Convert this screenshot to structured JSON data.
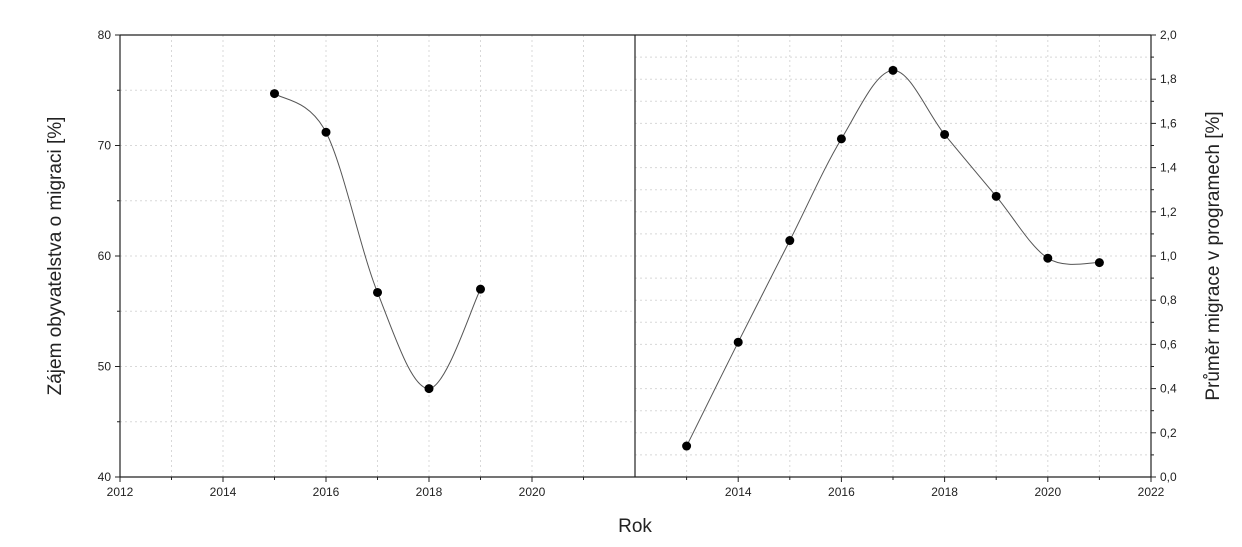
{
  "chart_data": [
    {
      "type": "scatter",
      "panel": "left",
      "xlabel": "Rok",
      "ylabel": "Zájem obyvatelstva o migraci [%]",
      "xlim": [
        2012,
        2022
      ],
      "ylim": [
        40,
        80
      ],
      "x_ticks": [
        "2012",
        "2014",
        "2016",
        "2018",
        "2020"
      ],
      "y_ticks": [
        "40",
        "50",
        "60",
        "70",
        "80"
      ],
      "grid": true,
      "smooth_line": true,
      "x": [
        2015,
        2016,
        2017,
        2018,
        2019
      ],
      "y": [
        74.7,
        71.2,
        56.7,
        48.0,
        57.0
      ]
    },
    {
      "type": "scatter",
      "panel": "right",
      "xlabel": "Rok",
      "ylabel": "Průměr migrace v programech [%]",
      "xlim": [
        2012,
        2022
      ],
      "ylim": [
        0,
        2.0
      ],
      "x_ticks": [
        "2014",
        "2016",
        "2018",
        "2020",
        "2022"
      ],
      "y_ticks": [
        "0,0",
        "0,2",
        "0,4",
        "0,6",
        "0,8",
        "1,0",
        "1,2",
        "1,4",
        "1,6",
        "1,8",
        "2,0"
      ],
      "grid": true,
      "smooth_line": true,
      "x": [
        2013,
        2014,
        2015,
        2016,
        2017,
        2018,
        2019,
        2020,
        2021
      ],
      "y": [
        0.14,
        0.61,
        1.07,
        1.53,
        1.84,
        1.55,
        1.27,
        0.99,
        0.97
      ]
    }
  ],
  "colors": {
    "axis": "#222222",
    "grid": "#d8d8d8",
    "line": "#555555",
    "marker": "#000000"
  }
}
